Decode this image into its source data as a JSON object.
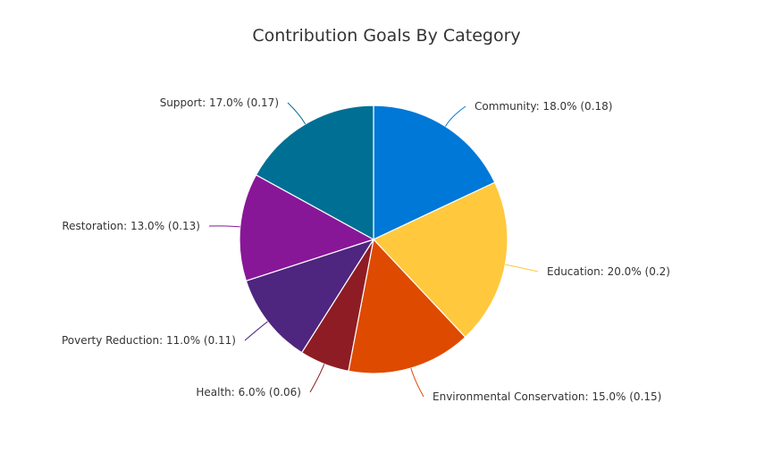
{
  "chart_data": {
    "type": "pie",
    "title": "Contribution Goals By Category",
    "slices": [
      {
        "label": "Community",
        "value": 0.18,
        "text": "Community: 18.0% (0.18)",
        "color": "#0078D7"
      },
      {
        "label": "Education",
        "value": 0.2,
        "text": "Education: 20.0% (0.2)",
        "color": "#FFC83D"
      },
      {
        "label": "Environmental Conservation",
        "value": 0.15,
        "text": "Environmental Conservation: 15.0% (0.15)",
        "color": "#DE4A00"
      },
      {
        "label": "Health",
        "value": 0.06,
        "text": "Health: 6.0% (0.06)",
        "color": "#8E1C24"
      },
      {
        "label": "Poverty Reduction",
        "value": 0.11,
        "text": "Poverty Reduction: 11.0% (0.11)",
        "color": "#4E257F"
      },
      {
        "label": "Restoration",
        "value": 0.13,
        "text": "Restoration: 13.0% (0.13)",
        "color": "#881798"
      },
      {
        "label": "Support",
        "value": 0.17,
        "text": "Support: 17.0% (0.17)",
        "color": "#006F94"
      }
    ],
    "start_angle": "top",
    "direction": "clockwise",
    "legend": "none"
  }
}
